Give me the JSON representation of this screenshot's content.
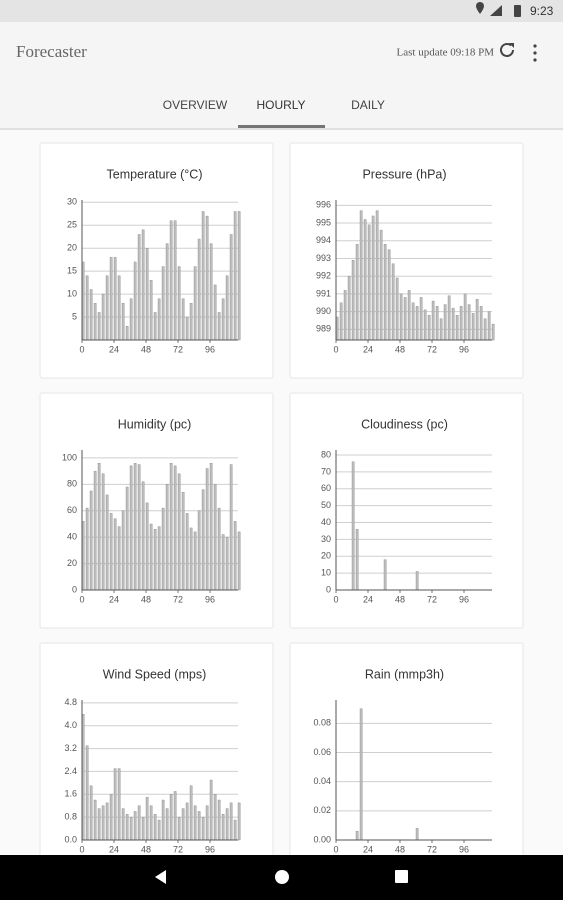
{
  "status_bar": {
    "time": "9:23"
  },
  "app_bar": {
    "title": "Forecaster",
    "last_update": "Last update 09:18 PM"
  },
  "tabs": [
    "OVERVIEW",
    "HOURLY",
    "DAILY"
  ],
  "chart_data": [
    {
      "type": "bar",
      "title": "Temperature (°C)",
      "color": "#bdbdbd",
      "grid": true,
      "x": [
        0,
        3,
        6,
        9,
        12,
        15,
        18,
        21,
        24,
        27,
        30,
        33,
        36,
        39,
        42,
        45,
        48,
        51,
        54,
        57,
        60,
        63,
        66,
        69,
        72,
        75,
        78,
        81,
        84,
        87,
        90,
        93,
        96,
        99,
        102,
        105,
        108,
        111,
        114,
        117
      ],
      "values": [
        17,
        14,
        11,
        8,
        6,
        10,
        14,
        18,
        18,
        14,
        8,
        3,
        9,
        17,
        23,
        24,
        20,
        13,
        6,
        9,
        16,
        21,
        26,
        26,
        16,
        9,
        5,
        8,
        16,
        22,
        28,
        27,
        21,
        12,
        6,
        9,
        14,
        23,
        28,
        28
      ],
      "xlim": [
        0,
        117
      ],
      "xticks": [
        0,
        24,
        48,
        72,
        96
      ],
      "ylim": [
        0,
        30.5
      ],
      "yticks": [
        5,
        10,
        15,
        20,
        25,
        30
      ]
    },
    {
      "type": "bar",
      "title": "Pressure (hPa)",
      "color": "#bdbdbd",
      "grid": true,
      "x": [
        0,
        3,
        6,
        9,
        12,
        15,
        18,
        21,
        24,
        27,
        30,
        33,
        36,
        39,
        42,
        45,
        48,
        51,
        54,
        57,
        60,
        63,
        66,
        69,
        72,
        75,
        78,
        81,
        84,
        87,
        90,
        93,
        96,
        99,
        102,
        105,
        108,
        111,
        114,
        117
      ],
      "values": [
        989.7,
        990.5,
        991.2,
        992,
        992.9,
        993.8,
        995.7,
        995.2,
        994.9,
        995.4,
        995.7,
        994.6,
        993.8,
        993.5,
        992.7,
        991.9,
        991,
        990.8,
        991.2,
        990.5,
        990.3,
        990.8,
        990.1,
        989.8,
        990.6,
        990.3,
        989.6,
        990.4,
        990.9,
        990.2,
        989.8,
        990.3,
        991,
        990.4,
        989.9,
        990.7,
        990.3,
        989.6,
        990,
        989.3
      ],
      "xlim": [
        0,
        117
      ],
      "xticks": [
        0,
        24,
        48,
        72,
        96
      ],
      "ylim": [
        988.4,
        996.3
      ],
      "yticks": [
        989,
        990,
        991,
        992,
        993,
        994,
        995,
        996
      ]
    },
    {
      "type": "bar",
      "title": "Humidity (pc)",
      "color": "#bdbdbd",
      "grid": true,
      "x": [
        0,
        3,
        6,
        9,
        12,
        15,
        18,
        21,
        24,
        27,
        30,
        33,
        36,
        39,
        42,
        45,
        48,
        51,
        54,
        57,
        60,
        63,
        66,
        69,
        72,
        75,
        78,
        81,
        84,
        87,
        90,
        93,
        96,
        99,
        102,
        105,
        108,
        111,
        114,
        117
      ],
      "values": [
        52,
        62,
        75,
        90,
        96,
        88,
        72,
        58,
        54,
        48,
        60,
        78,
        94,
        96,
        95,
        82,
        66,
        50,
        46,
        48,
        62,
        80,
        96,
        94,
        88,
        74,
        58,
        47,
        44,
        60,
        76,
        92,
        96,
        80,
        62,
        42,
        40,
        95,
        52,
        44
      ],
      "xlim": [
        0,
        117
      ],
      "xticks": [
        0,
        24,
        48,
        72,
        96
      ],
      "ylim": [
        0,
        106
      ],
      "yticks": [
        0,
        20,
        40,
        60,
        80,
        100
      ]
    },
    {
      "type": "bar",
      "title": "Cloudiness (pc)",
      "color": "#bdbdbd",
      "grid": true,
      "x": [
        0,
        3,
        6,
        9,
        12,
        15,
        18,
        21,
        24,
        27,
        30,
        33,
        36,
        39,
        42,
        45,
        48,
        51,
        54,
        57,
        60,
        63,
        66,
        69,
        72,
        75,
        78,
        81,
        84,
        87,
        90,
        93,
        96,
        99,
        102,
        105,
        108,
        111,
        114,
        117
      ],
      "values": [
        0,
        0,
        0,
        0,
        76,
        36,
        0,
        0,
        0,
        0,
        0,
        0,
        18,
        0,
        0,
        0,
        0,
        0,
        0,
        0,
        11,
        0,
        0,
        0,
        0,
        0,
        0,
        0,
        0,
        0,
        0,
        0,
        0,
        0,
        0,
        0,
        0,
        0,
        0,
        0
      ],
      "xlim": [
        0,
        117
      ],
      "xticks": [
        0,
        24,
        48,
        72,
        96
      ],
      "ylim": [
        0,
        83
      ],
      "yticks": [
        0,
        10,
        20,
        30,
        40,
        50,
        60,
        70,
        80
      ]
    },
    {
      "type": "bar",
      "title": "Wind Speed (mps)",
      "color": "#bdbdbd",
      "grid": true,
      "x": [
        0,
        3,
        6,
        9,
        12,
        15,
        18,
        21,
        24,
        27,
        30,
        33,
        36,
        39,
        42,
        45,
        48,
        51,
        54,
        57,
        60,
        63,
        66,
        69,
        72,
        75,
        78,
        81,
        84,
        87,
        90,
        93,
        96,
        99,
        102,
        105,
        108,
        111,
        114,
        117
      ],
      "values": [
        4.4,
        3.3,
        1.9,
        1.4,
        1.1,
        1.2,
        1.3,
        1.6,
        2.5,
        2.5,
        1.1,
        0.9,
        0.8,
        1,
        1.2,
        0.8,
        1.5,
        1.2,
        0.9,
        0.7,
        1.4,
        1.1,
        1.6,
        1.7,
        0.8,
        1.1,
        1.3,
        1.9,
        1.2,
        1,
        0.8,
        1.2,
        2.1,
        1.6,
        1.4,
        0.9,
        1.1,
        1.3,
        0.7,
        1.3
      ],
      "xlim": [
        0,
        117
      ],
      "xticks": [
        0,
        24,
        48,
        72,
        96
      ],
      "ylim": [
        0,
        4.9
      ],
      "yticks": [
        {
          "value": 0,
          "label": "0.0"
        },
        0.8,
        1.6,
        2.4,
        3.2,
        {
          "value": 4,
          "label": "4.0"
        },
        4.8
      ]
    },
    {
      "type": "bar",
      "title": "Rain (mmp3h)",
      "color": "#bdbdbd",
      "grid": true,
      "x": [
        0,
        3,
        6,
        9,
        12,
        15,
        18,
        21,
        24,
        27,
        30,
        33,
        36,
        39,
        42,
        45,
        48,
        51,
        54,
        57,
        60,
        63,
        66,
        69,
        72,
        75,
        78,
        81,
        84,
        87,
        90,
        93,
        96,
        99,
        102,
        105,
        108,
        111,
        114,
        117
      ],
      "values": [
        0,
        0,
        0,
        0,
        0,
        0.006,
        0.09,
        0,
        0,
        0,
        0,
        0,
        0,
        0,
        0,
        0,
        0,
        0,
        0,
        0,
        0.008,
        0,
        0,
        0,
        0,
        0,
        0,
        0,
        0,
        0,
        0,
        0,
        0,
        0,
        0,
        0,
        0,
        0,
        0,
        0
      ],
      "xlim": [
        0,
        117
      ],
      "xticks": [
        0,
        24,
        48,
        72,
        96
      ],
      "ylim": [
        0,
        0.096
      ],
      "yticks": [
        {
          "value": 0,
          "label": "0.00"
        },
        {
          "value": 0.02,
          "label": "0.02"
        },
        {
          "value": 0.04,
          "label": "0.04"
        },
        {
          "value": 0.06,
          "label": "0.06"
        },
        {
          "value": 0.08,
          "label": "0.08"
        }
      ]
    }
  ]
}
